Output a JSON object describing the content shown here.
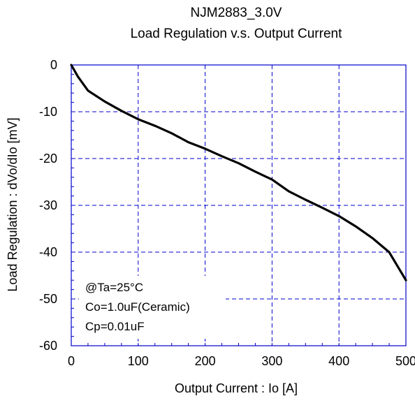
{
  "chart_data": {
    "type": "line",
    "title": "NJM2883_3.0V",
    "subtitle": "Load Regulation v.s. Output Current",
    "xlabel": "Output Current : Io [A]",
    "ylabel": "Load Regulation : dVo/dIo [mV]",
    "xlim": [
      0,
      500
    ],
    "ylim": [
      -60,
      0
    ],
    "xticks": [
      0,
      100,
      200,
      300,
      400,
      500
    ],
    "yticks": [
      0,
      -10,
      -20,
      -30,
      -40,
      -50,
      -60
    ],
    "grid": true,
    "grid_color": "#0000cc",
    "line_color": "#000000",
    "annotations": [
      "@Ta=25°C",
      "Co=1.0uF(Ceramic)",
      "Cp=0.01uF"
    ],
    "series": [
      {
        "x": [
          0,
          10,
          25,
          50,
          75,
          100,
          125,
          150,
          175,
          200,
          225,
          250,
          275,
          300,
          325,
          350,
          375,
          400,
          425,
          450,
          475,
          500
        ],
        "y": [
          0,
          -2.5,
          -5.5,
          -7.8,
          -9.8,
          -11.6,
          -13.0,
          -14.6,
          -16.5,
          -17.9,
          -19.5,
          -21.0,
          -22.8,
          -24.5,
          -27.0,
          -28.8,
          -30.5,
          -32.3,
          -34.5,
          -37.0,
          -40.0,
          -46.0
        ]
      }
    ]
  }
}
